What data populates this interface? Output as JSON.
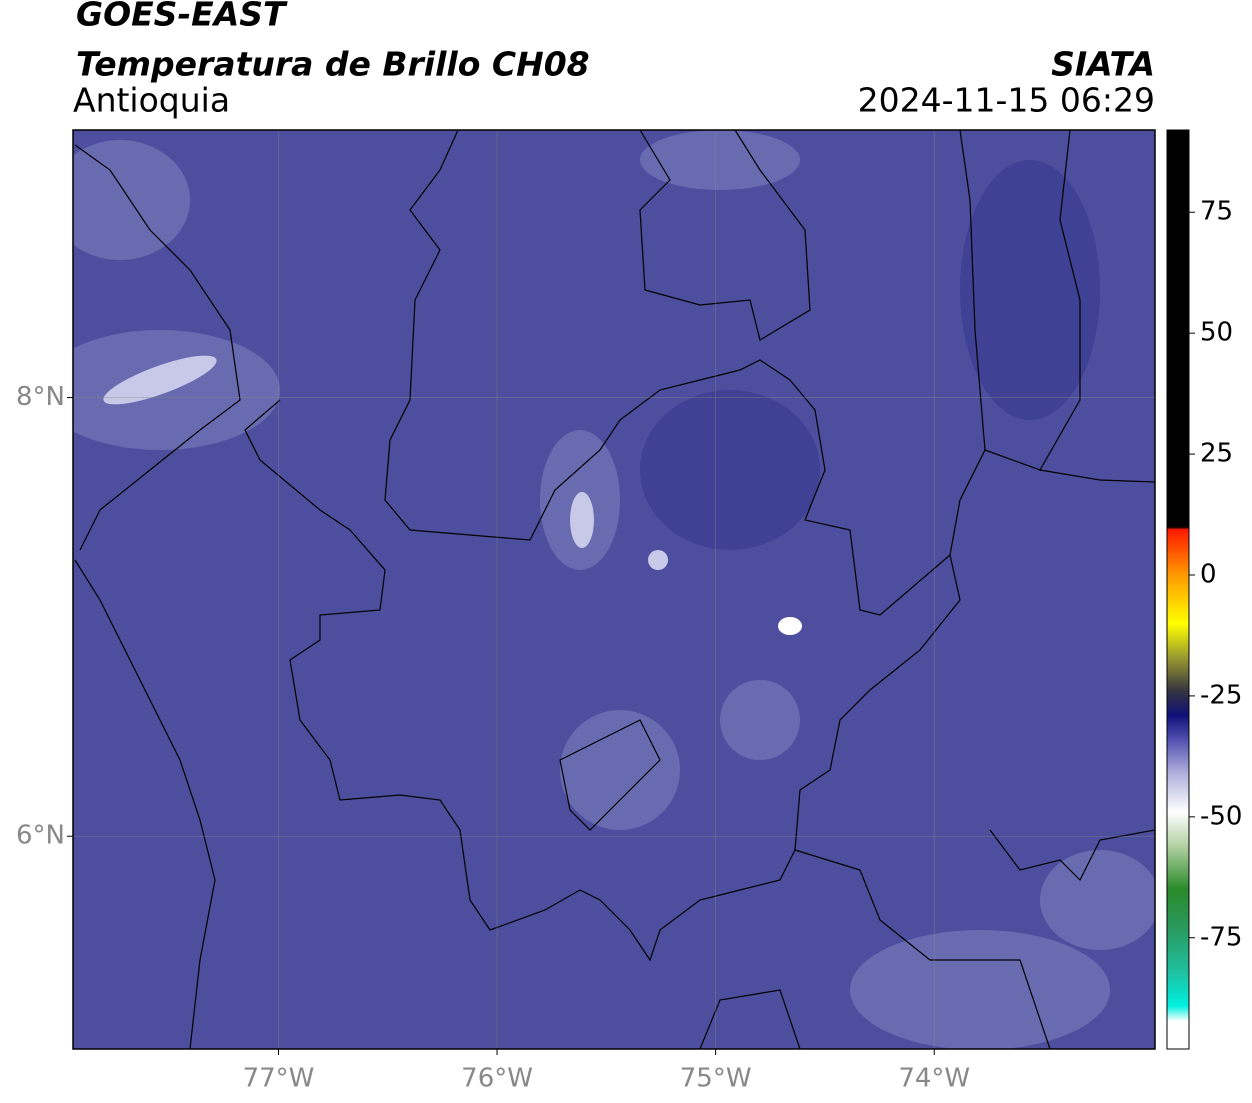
{
  "header": {
    "line1": "GOES-EAST",
    "title": "Temperatura de Brillo CH08",
    "region": "Antioquia",
    "agency": "SIATA",
    "timestamp": "2024-11-15 06:29"
  },
  "map": {
    "xlim": [
      -77.94,
      -72.99
    ],
    "ylim": [
      5.03,
      9.22
    ],
    "xticks": [
      {
        "value": -77,
        "label": "77°W"
      },
      {
        "value": -76,
        "label": "76°W"
      },
      {
        "value": -75,
        "label": "75°W"
      },
      {
        "value": -74,
        "label": "74°W"
      }
    ],
    "yticks": [
      {
        "value": 6,
        "label": "6°N"
      },
      {
        "value": 8,
        "label": "8°N"
      }
    ],
    "grid": true
  },
  "colorbar": {
    "lim": [
      -98,
      92
    ],
    "ticks": [
      -75,
      -50,
      -25,
      0,
      25,
      50,
      75
    ]
  }
}
